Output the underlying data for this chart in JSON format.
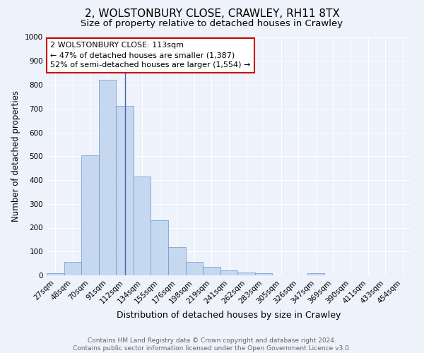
{
  "title1": "2, WOLSTONBURY CLOSE, CRAWLEY, RH11 8TX",
  "title2": "Size of property relative to detached houses in Crawley",
  "xlabel": "Distribution of detached houses by size in Crawley",
  "ylabel": "Number of detached properties",
  "categories": [
    "27sqm",
    "48sqm",
    "70sqm",
    "91sqm",
    "112sqm",
    "134sqm",
    "155sqm",
    "176sqm",
    "198sqm",
    "219sqm",
    "241sqm",
    "262sqm",
    "283sqm",
    "305sqm",
    "326sqm",
    "347sqm",
    "369sqm",
    "390sqm",
    "411sqm",
    "433sqm",
    "454sqm"
  ],
  "values": [
    8,
    57,
    505,
    820,
    710,
    415,
    232,
    118,
    55,
    35,
    20,
    12,
    10,
    0,
    0,
    10,
    0,
    0,
    0,
    0,
    0
  ],
  "bar_color": "#c5d8f0",
  "bar_edge_color": "#6699cc",
  "vline_x": 4.0,
  "vline_color": "#4466aa",
  "annotation_text": "2 WOLSTONBURY CLOSE: 113sqm\n← 47% of detached houses are smaller (1,387)\n52% of semi-detached houses are larger (1,554) →",
  "annotation_box_facecolor": "#ffffff",
  "annotation_box_edgecolor": "#cc0000",
  "ylim": [
    0,
    1000
  ],
  "yticks": [
    0,
    100,
    200,
    300,
    400,
    500,
    600,
    700,
    800,
    900,
    1000
  ],
  "background_color": "#eef2fb",
  "grid_color": "#ffffff",
  "title1_fontsize": 11,
  "title2_fontsize": 9.5,
  "xlabel_fontsize": 9,
  "ylabel_fontsize": 8.5,
  "tick_fontsize": 7.5,
  "annotation_fontsize": 8,
  "footer_fontsize": 6.5,
  "footer_text": "Contains HM Land Registry data © Crown copyright and database right 2024.\nContains public sector information licensed under the Open Government Licence v3.0.",
  "footer_color": "#666666"
}
